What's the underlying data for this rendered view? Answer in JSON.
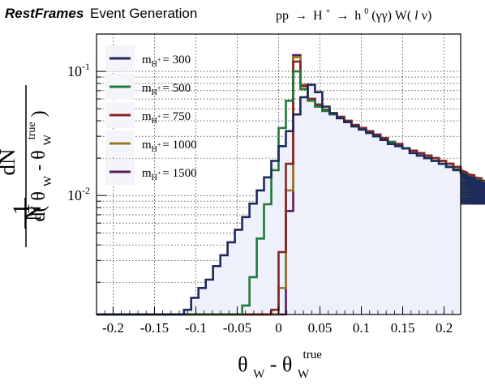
{
  "header": {
    "brand": "RestFrames",
    "subtitle": "Event Generation",
    "process": {
      "pre": "pp",
      "arrow1": "→",
      "H": "H",
      "Hsup": "+",
      "arrow2": "→",
      "h": "h",
      "hsup": "0",
      "paren1": "(γγ) W(",
      "l": "l",
      "paren2": " ν)"
    }
  },
  "chart_data": {
    "type": "histogram",
    "x_range": [
      -0.22,
      0.22
    ],
    "y_scale": "log",
    "y_range": [
      0.0011,
      0.2
    ],
    "bin_width": 0.0088,
    "x_ticks": [
      "-0.2",
      "-0.15",
      "-0.1",
      "-0.05",
      "0",
      "0.05",
      "0.1",
      "0.15",
      "0.2"
    ],
    "x_tick_values": [
      -0.2,
      -0.15,
      -0.1,
      -0.05,
      0,
      0.05,
      0.1,
      0.15,
      0.2
    ],
    "y_ticks": [
      {
        "base": "10",
        "exp": "-1",
        "value": 0.1
      },
      {
        "base": "10",
        "exp": "-2",
        "value": 0.01
      }
    ],
    "xlabel": {
      "theta": "θ",
      "sub": "W",
      "minus": " - θ",
      "sub2": "W",
      "sup2": "true"
    },
    "ylabel": {
      "one": "1",
      "N": "N",
      "num": "dN",
      "den_a": "d( θ",
      "den_sub": "W",
      "den_b": " - θ",
      "den_sub2": "W",
      "den_sup2": "true",
      "den_c": ")"
    },
    "fill_color": "#eef0fb",
    "grid": true,
    "legend_position": "top-left",
    "series": [
      {
        "name": "300",
        "color": "#1f2a5c",
        "label": "m",
        "sub": "H",
        "subsup": "+",
        "eq": "= 300",
        "values": [
          0.0011,
          0.0011,
          0.0011,
          0.0011,
          0.0011,
          0.0011,
          0.0011,
          0.0011,
          0.0011,
          0.0011,
          0.0011,
          0.0011,
          0.0012,
          0.0015,
          0.0018,
          0.0021,
          0.0027,
          0.0033,
          0.0042,
          0.0053,
          0.0067,
          0.0086,
          0.011,
          0.014,
          0.019,
          0.025,
          0.033,
          0.045,
          0.062,
          0.078,
          0.068,
          0.052,
          0.046,
          0.042,
          0.039,
          0.036,
          0.034,
          0.032,
          0.03,
          0.028,
          0.026,
          0.025,
          0.024,
          0.022,
          0.021,
          0.02,
          0.019,
          0.018,
          0.017,
          0.016,
          0.0152,
          0.0145,
          0.0138,
          0.013,
          0.0124,
          0.0118,
          0.0112,
          0.0106,
          0.0101,
          0.0096,
          0.0092,
          0.0088,
          0.0086
        ]
      },
      {
        "name": "500",
        "color": "#1f7a3a",
        "label": "m",
        "sub": "H",
        "subsup": "+",
        "eq": "= 500",
        "values": [
          0.0011,
          0.0011,
          0.0011,
          0.0011,
          0.0011,
          0.0011,
          0.0011,
          0.0011,
          0.0011,
          0.0011,
          0.0011,
          0.0011,
          0.0011,
          0.0011,
          0.0011,
          0.0011,
          0.0011,
          0.0011,
          0.0011,
          0.0011,
          0.0013,
          0.0022,
          0.0045,
          0.0085,
          0.016,
          0.035,
          0.058,
          0.1,
          0.072,
          0.058,
          0.052,
          0.048,
          0.045,
          0.042,
          0.039,
          0.036,
          0.034,
          0.032,
          0.03,
          0.028,
          0.027,
          0.025,
          0.024,
          0.022,
          0.021,
          0.02,
          0.019,
          0.018,
          0.017,
          0.0162,
          0.0154,
          0.0146,
          0.0139,
          0.0132,
          0.0125,
          0.0119,
          0.0113,
          0.0107,
          0.0102,
          0.0097,
          0.0093,
          0.009,
          0.0088
        ]
      },
      {
        "name": "750",
        "color": "#8b2323",
        "label": "m",
        "sub": "H",
        "subsup": "+",
        "eq": "= 750",
        "values": [
          0.0011,
          0.0011,
          0.0011,
          0.0011,
          0.0011,
          0.0011,
          0.0011,
          0.0011,
          0.0011,
          0.0011,
          0.0011,
          0.0011,
          0.0011,
          0.0011,
          0.0011,
          0.0011,
          0.0011,
          0.0011,
          0.0011,
          0.0011,
          0.0011,
          0.0011,
          0.0011,
          0.0011,
          0.0012,
          0.0035,
          0.018,
          0.12,
          0.076,
          0.06,
          0.054,
          0.049,
          0.046,
          0.043,
          0.04,
          0.037,
          0.035,
          0.033,
          0.031,
          0.029,
          0.027,
          0.026,
          0.024,
          0.023,
          0.022,
          0.021,
          0.02,
          0.019,
          0.018,
          0.017,
          0.016,
          0.0152,
          0.0145,
          0.0137,
          0.013,
          0.0123,
          0.0117,
          0.0111,
          0.0105,
          0.01,
          0.0095,
          0.0092,
          0.009
        ]
      },
      {
        "name": "1000",
        "color": "#9a7a28",
        "label": "m",
        "sub": "H",
        "subsup": "+",
        "eq": "= 1000",
        "values": [
          0.0011,
          0.0011,
          0.0011,
          0.0011,
          0.0011,
          0.0011,
          0.0011,
          0.0011,
          0.0011,
          0.0011,
          0.0011,
          0.0011,
          0.0011,
          0.0011,
          0.0011,
          0.0011,
          0.0011,
          0.0011,
          0.0011,
          0.0011,
          0.0011,
          0.0011,
          0.0011,
          0.0011,
          0.0011,
          0.0018,
          0.011,
          0.13,
          0.078,
          0.06,
          0.054,
          0.049,
          0.046,
          0.043,
          0.04,
          0.037,
          0.035,
          0.033,
          0.031,
          0.029,
          0.027,
          0.026,
          0.024,
          0.023,
          0.022,
          0.021,
          0.02,
          0.019,
          0.018,
          0.017,
          0.016,
          0.0152,
          0.0145,
          0.0137,
          0.013,
          0.0123,
          0.0117,
          0.0111,
          0.0105,
          0.01,
          0.0095,
          0.0092,
          0.009
        ]
      },
      {
        "name": "1500",
        "color": "#5a1a5a",
        "label": "m",
        "sub": "H",
        "subsup": "+",
        "eq": "= 1500",
        "values": [
          0.0011,
          0.0011,
          0.0011,
          0.0011,
          0.0011,
          0.0011,
          0.0011,
          0.0011,
          0.0011,
          0.0011,
          0.0011,
          0.0011,
          0.0011,
          0.0011,
          0.0011,
          0.0011,
          0.0011,
          0.0011,
          0.0011,
          0.0011,
          0.0011,
          0.0011,
          0.0011,
          0.0011,
          0.0011,
          0.0011,
          0.0075,
          0.135,
          0.078,
          0.06,
          0.054,
          0.049,
          0.046,
          0.043,
          0.04,
          0.037,
          0.035,
          0.033,
          0.031,
          0.029,
          0.027,
          0.026,
          0.024,
          0.023,
          0.022,
          0.021,
          0.02,
          0.019,
          0.018,
          0.017,
          0.016,
          0.0152,
          0.0145,
          0.0137,
          0.013,
          0.0123,
          0.0117,
          0.0111,
          0.0105,
          0.01,
          0.0095,
          0.0092,
          0.009
        ]
      }
    ]
  }
}
